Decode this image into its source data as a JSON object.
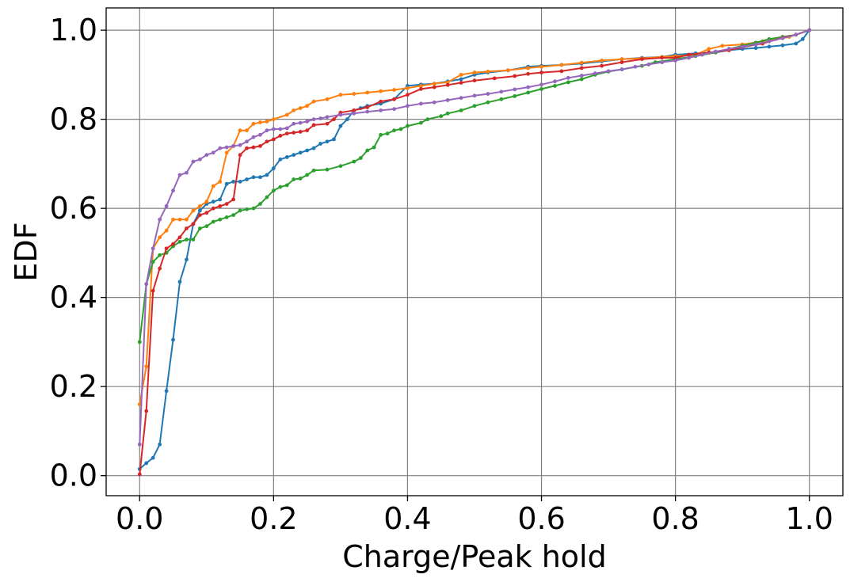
{
  "chart_data": {
    "type": "line",
    "title": "",
    "xlabel": "Charge/Peak hold",
    "ylabel": "EDF",
    "xlim": [
      -0.05,
      1.05
    ],
    "ylim": [
      -0.045,
      1.05
    ],
    "xticks": [
      0.0,
      0.2,
      0.4,
      0.6,
      0.8,
      1.0
    ],
    "xtick_labels": [
      "0.0",
      "0.2",
      "0.4",
      "0.6",
      "0.8",
      "1.0"
    ],
    "yticks": [
      0.0,
      0.2,
      0.4,
      0.6,
      0.8,
      1.0
    ],
    "ytick_labels": [
      "0.0",
      "0.2",
      "0.4",
      "0.6",
      "0.8",
      "1.0"
    ],
    "grid": true,
    "legend": "none",
    "markers": "small dots",
    "series": [
      {
        "color": "#1f77b4",
        "points": [
          [
            0.0,
            0.015
          ],
          [
            0.01,
            0.028
          ],
          [
            0.02,
            0.04
          ],
          [
            0.03,
            0.07
          ],
          [
            0.04,
            0.19
          ],
          [
            0.05,
            0.305
          ],
          [
            0.06,
            0.435
          ],
          [
            0.07,
            0.485
          ],
          [
            0.08,
            0.565
          ],
          [
            0.09,
            0.595
          ],
          [
            0.1,
            0.61
          ],
          [
            0.11,
            0.615
          ],
          [
            0.12,
            0.62
          ],
          [
            0.13,
            0.655
          ],
          [
            0.14,
            0.66
          ],
          [
            0.15,
            0.66
          ],
          [
            0.16,
            0.665
          ],
          [
            0.17,
            0.67
          ],
          [
            0.18,
            0.67
          ],
          [
            0.19,
            0.675
          ],
          [
            0.2,
            0.69
          ],
          [
            0.21,
            0.71
          ],
          [
            0.22,
            0.715
          ],
          [
            0.23,
            0.72
          ],
          [
            0.24,
            0.725
          ],
          [
            0.25,
            0.73
          ],
          [
            0.26,
            0.735
          ],
          [
            0.27,
            0.745
          ],
          [
            0.28,
            0.75
          ],
          [
            0.29,
            0.755
          ],
          [
            0.3,
            0.785
          ],
          [
            0.31,
            0.8
          ],
          [
            0.32,
            0.82
          ],
          [
            0.33,
            0.825
          ],
          [
            0.34,
            0.83
          ],
          [
            0.36,
            0.835
          ],
          [
            0.38,
            0.845
          ],
          [
            0.4,
            0.875
          ],
          [
            0.42,
            0.878
          ],
          [
            0.44,
            0.88
          ],
          [
            0.46,
            0.885
          ],
          [
            0.48,
            0.89
          ],
          [
            0.5,
            0.9
          ],
          [
            0.52,
            0.905
          ],
          [
            0.55,
            0.91
          ],
          [
            0.58,
            0.918
          ],
          [
            0.6,
            0.92
          ],
          [
            0.63,
            0.922
          ],
          [
            0.66,
            0.925
          ],
          [
            0.69,
            0.93
          ],
          [
            0.72,
            0.935
          ],
          [
            0.75,
            0.938
          ],
          [
            0.78,
            0.94
          ],
          [
            0.8,
            0.945
          ],
          [
            0.83,
            0.948
          ],
          [
            0.86,
            0.95
          ],
          [
            0.88,
            0.955
          ],
          [
            0.9,
            0.958
          ],
          [
            0.92,
            0.96
          ],
          [
            0.94,
            0.963
          ],
          [
            0.96,
            0.966
          ],
          [
            0.98,
            0.97
          ],
          [
            0.99,
            0.98
          ],
          [
            1.0,
            1.0
          ]
        ]
      },
      {
        "color": "#ff7f0e",
        "points": [
          [
            0.0,
            0.16
          ],
          [
            0.01,
            0.245
          ],
          [
            0.02,
            0.51
          ],
          [
            0.03,
            0.535
          ],
          [
            0.04,
            0.55
          ],
          [
            0.05,
            0.575
          ],
          [
            0.06,
            0.575
          ],
          [
            0.07,
            0.575
          ],
          [
            0.08,
            0.595
          ],
          [
            0.09,
            0.605
          ],
          [
            0.1,
            0.615
          ],
          [
            0.11,
            0.65
          ],
          [
            0.12,
            0.66
          ],
          [
            0.13,
            0.725
          ],
          [
            0.14,
            0.74
          ],
          [
            0.15,
            0.775
          ],
          [
            0.16,
            0.775
          ],
          [
            0.17,
            0.79
          ],
          [
            0.18,
            0.793
          ],
          [
            0.19,
            0.795
          ],
          [
            0.2,
            0.8
          ],
          [
            0.22,
            0.81
          ],
          [
            0.23,
            0.82
          ],
          [
            0.24,
            0.825
          ],
          [
            0.25,
            0.83
          ],
          [
            0.26,
            0.84
          ],
          [
            0.28,
            0.845
          ],
          [
            0.3,
            0.855
          ],
          [
            0.32,
            0.857
          ],
          [
            0.34,
            0.86
          ],
          [
            0.36,
            0.863
          ],
          [
            0.38,
            0.866
          ],
          [
            0.4,
            0.87
          ],
          [
            0.42,
            0.875
          ],
          [
            0.44,
            0.88
          ],
          [
            0.46,
            0.883
          ],
          [
            0.48,
            0.9
          ],
          [
            0.5,
            0.905
          ],
          [
            0.52,
            0.907
          ],
          [
            0.55,
            0.91
          ],
          [
            0.58,
            0.915
          ],
          [
            0.6,
            0.918
          ],
          [
            0.63,
            0.922
          ],
          [
            0.66,
            0.927
          ],
          [
            0.69,
            0.932
          ],
          [
            0.72,
            0.935
          ],
          [
            0.75,
            0.937
          ],
          [
            0.78,
            0.94
          ],
          [
            0.8,
            0.942
          ],
          [
            0.83,
            0.945
          ],
          [
            0.85,
            0.958
          ],
          [
            0.87,
            0.965
          ],
          [
            0.9,
            0.968
          ],
          [
            0.93,
            0.975
          ],
          [
            0.95,
            0.98
          ],
          [
            0.97,
            0.985
          ],
          [
            1.0,
            1.0
          ]
        ]
      },
      {
        "color": "#2ca02c",
        "points": [
          [
            0.0,
            0.3
          ],
          [
            0.01,
            0.43
          ],
          [
            0.02,
            0.48
          ],
          [
            0.03,
            0.495
          ],
          [
            0.04,
            0.5
          ],
          [
            0.05,
            0.515
          ],
          [
            0.06,
            0.525
          ],
          [
            0.07,
            0.53
          ],
          [
            0.08,
            0.53
          ],
          [
            0.09,
            0.555
          ],
          [
            0.1,
            0.56
          ],
          [
            0.11,
            0.57
          ],
          [
            0.12,
            0.575
          ],
          [
            0.13,
            0.58
          ],
          [
            0.14,
            0.585
          ],
          [
            0.15,
            0.595
          ],
          [
            0.16,
            0.598
          ],
          [
            0.17,
            0.6
          ],
          [
            0.18,
            0.61
          ],
          [
            0.19,
            0.625
          ],
          [
            0.2,
            0.64
          ],
          [
            0.21,
            0.648
          ],
          [
            0.22,
            0.652
          ],
          [
            0.23,
            0.665
          ],
          [
            0.24,
            0.667
          ],
          [
            0.25,
            0.675
          ],
          [
            0.26,
            0.685
          ],
          [
            0.28,
            0.687
          ],
          [
            0.3,
            0.695
          ],
          [
            0.32,
            0.705
          ],
          [
            0.33,
            0.713
          ],
          [
            0.34,
            0.73
          ],
          [
            0.35,
            0.737
          ],
          [
            0.36,
            0.765
          ],
          [
            0.37,
            0.768
          ],
          [
            0.38,
            0.775
          ],
          [
            0.39,
            0.778
          ],
          [
            0.4,
            0.785
          ],
          [
            0.42,
            0.792
          ],
          [
            0.43,
            0.8
          ],
          [
            0.45,
            0.807
          ],
          [
            0.46,
            0.813
          ],
          [
            0.48,
            0.82
          ],
          [
            0.5,
            0.83
          ],
          [
            0.52,
            0.838
          ],
          [
            0.54,
            0.845
          ],
          [
            0.56,
            0.852
          ],
          [
            0.58,
            0.86
          ],
          [
            0.6,
            0.868
          ],
          [
            0.62,
            0.875
          ],
          [
            0.64,
            0.883
          ],
          [
            0.66,
            0.89
          ],
          [
            0.68,
            0.9
          ],
          [
            0.7,
            0.907
          ],
          [
            0.72,
            0.912
          ],
          [
            0.75,
            0.92
          ],
          [
            0.77,
            0.928
          ],
          [
            0.8,
            0.935
          ],
          [
            0.83,
            0.942
          ],
          [
            0.86,
            0.95
          ],
          [
            0.88,
            0.958
          ],
          [
            0.9,
            0.965
          ],
          [
            0.92,
            0.972
          ],
          [
            0.94,
            0.98
          ],
          [
            0.96,
            0.985
          ],
          [
            0.98,
            0.99
          ],
          [
            1.0,
            1.0
          ]
        ]
      },
      {
        "color": "#d62728",
        "points": [
          [
            0.0,
            0.003
          ],
          [
            0.01,
            0.145
          ],
          [
            0.02,
            0.415
          ],
          [
            0.03,
            0.465
          ],
          [
            0.04,
            0.51
          ],
          [
            0.05,
            0.52
          ],
          [
            0.06,
            0.535
          ],
          [
            0.07,
            0.555
          ],
          [
            0.08,
            0.565
          ],
          [
            0.09,
            0.585
          ],
          [
            0.1,
            0.59
          ],
          [
            0.11,
            0.6
          ],
          [
            0.12,
            0.605
          ],
          [
            0.13,
            0.61
          ],
          [
            0.14,
            0.62
          ],
          [
            0.15,
            0.72
          ],
          [
            0.16,
            0.735
          ],
          [
            0.17,
            0.737
          ],
          [
            0.18,
            0.74
          ],
          [
            0.19,
            0.75
          ],
          [
            0.2,
            0.755
          ],
          [
            0.21,
            0.763
          ],
          [
            0.22,
            0.768
          ],
          [
            0.23,
            0.77
          ],
          [
            0.24,
            0.772
          ],
          [
            0.25,
            0.775
          ],
          [
            0.26,
            0.787
          ],
          [
            0.28,
            0.79
          ],
          [
            0.29,
            0.8
          ],
          [
            0.3,
            0.815
          ],
          [
            0.32,
            0.82
          ],
          [
            0.34,
            0.827
          ],
          [
            0.36,
            0.84
          ],
          [
            0.38,
            0.845
          ],
          [
            0.4,
            0.855
          ],
          [
            0.42,
            0.868
          ],
          [
            0.44,
            0.872
          ],
          [
            0.46,
            0.877
          ],
          [
            0.48,
            0.882
          ],
          [
            0.5,
            0.887
          ],
          [
            0.53,
            0.892
          ],
          [
            0.56,
            0.897
          ],
          [
            0.58,
            0.902
          ],
          [
            0.6,
            0.905
          ],
          [
            0.63,
            0.908
          ],
          [
            0.66,
            0.915
          ],
          [
            0.69,
            0.92
          ],
          [
            0.72,
            0.928
          ],
          [
            0.75,
            0.935
          ],
          [
            0.78,
            0.938
          ],
          [
            0.8,
            0.938
          ],
          [
            0.82,
            0.945
          ],
          [
            0.85,
            0.95
          ],
          [
            0.88,
            0.955
          ],
          [
            0.9,
            0.962
          ],
          [
            0.93,
            0.97
          ],
          [
            0.96,
            0.983
          ],
          [
            0.98,
            0.99
          ],
          [
            1.0,
            1.0
          ]
        ]
      },
      {
        "color": "#9467bd",
        "points": [
          [
            0.0,
            0.07
          ],
          [
            0.01,
            0.43
          ],
          [
            0.02,
            0.51
          ],
          [
            0.03,
            0.575
          ],
          [
            0.04,
            0.605
          ],
          [
            0.05,
            0.64
          ],
          [
            0.06,
            0.675
          ],
          [
            0.07,
            0.68
          ],
          [
            0.08,
            0.705
          ],
          [
            0.09,
            0.71
          ],
          [
            0.1,
            0.72
          ],
          [
            0.11,
            0.725
          ],
          [
            0.12,
            0.735
          ],
          [
            0.13,
            0.737
          ],
          [
            0.14,
            0.74
          ],
          [
            0.15,
            0.742
          ],
          [
            0.16,
            0.75
          ],
          [
            0.17,
            0.76
          ],
          [
            0.18,
            0.765
          ],
          [
            0.19,
            0.775
          ],
          [
            0.2,
            0.778
          ],
          [
            0.21,
            0.778
          ],
          [
            0.22,
            0.78
          ],
          [
            0.23,
            0.79
          ],
          [
            0.24,
            0.792
          ],
          [
            0.25,
            0.795
          ],
          [
            0.26,
            0.8
          ],
          [
            0.27,
            0.802
          ],
          [
            0.28,
            0.805
          ],
          [
            0.3,
            0.81
          ],
          [
            0.32,
            0.813
          ],
          [
            0.34,
            0.817
          ],
          [
            0.36,
            0.82
          ],
          [
            0.38,
            0.823
          ],
          [
            0.4,
            0.83
          ],
          [
            0.42,
            0.835
          ],
          [
            0.44,
            0.838
          ],
          [
            0.46,
            0.843
          ],
          [
            0.48,
            0.848
          ],
          [
            0.5,
            0.853
          ],
          [
            0.52,
            0.857
          ],
          [
            0.54,
            0.862
          ],
          [
            0.56,
            0.867
          ],
          [
            0.58,
            0.872
          ],
          [
            0.6,
            0.878
          ],
          [
            0.62,
            0.885
          ],
          [
            0.64,
            0.893
          ],
          [
            0.66,
            0.898
          ],
          [
            0.68,
            0.903
          ],
          [
            0.7,
            0.908
          ],
          [
            0.72,
            0.912
          ],
          [
            0.74,
            0.918
          ],
          [
            0.76,
            0.923
          ],
          [
            0.78,
            0.928
          ],
          [
            0.8,
            0.932
          ],
          [
            0.82,
            0.938
          ],
          [
            0.84,
            0.945
          ],
          [
            0.86,
            0.952
          ],
          [
            0.88,
            0.958
          ],
          [
            0.9,
            0.963
          ],
          [
            0.92,
            0.968
          ],
          [
            0.94,
            0.975
          ],
          [
            0.96,
            0.982
          ],
          [
            0.98,
            0.99
          ],
          [
            1.0,
            1.0
          ]
        ]
      }
    ]
  }
}
